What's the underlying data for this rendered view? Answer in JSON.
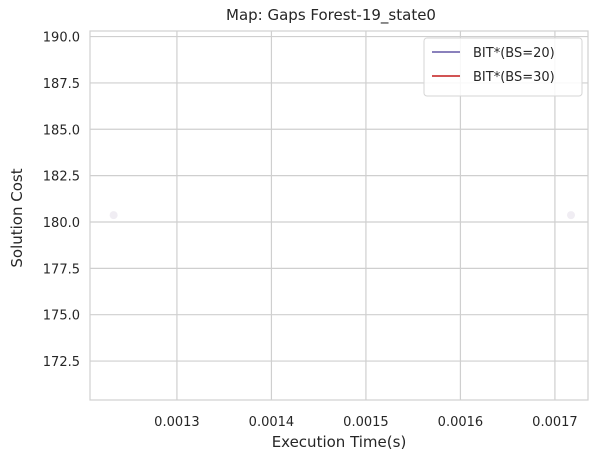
{
  "chart_data": {
    "type": "line",
    "title": "Map: Gaps Forest-19_state0",
    "xlabel": "Execution Time(s)",
    "ylabel": "Solution Cost",
    "xlim": [
      0.001208,
      0.001735
    ],
    "ylim": [
      170.4,
      190.3
    ],
    "xticks": [
      0.0013,
      0.0014,
      0.0015,
      0.0016,
      0.0017
    ],
    "xtick_labels": [
      "0.0013",
      "0.0014",
      "0.0015",
      "0.0016",
      "0.0017"
    ],
    "yticks": [
      172.5,
      175.0,
      177.5,
      180.0,
      182.5,
      185.0,
      187.5,
      190.0
    ],
    "ytick_labels": [
      "172.5",
      "175.0",
      "177.5",
      "180.0",
      "182.5",
      "185.0",
      "187.5",
      "190.0"
    ],
    "grid": true,
    "legend_position": "top-right",
    "series": [
      {
        "name": "BIT*(BS=20)",
        "color": "#7a6fb3",
        "points": [
          {
            "x": 0.001233,
            "y": 180.37
          },
          {
            "x": 0.001717,
            "y": 180.37
          }
        ]
      },
      {
        "name": "BIT*(BS=30)",
        "color": "#cc3b3b",
        "points": []
      }
    ]
  }
}
